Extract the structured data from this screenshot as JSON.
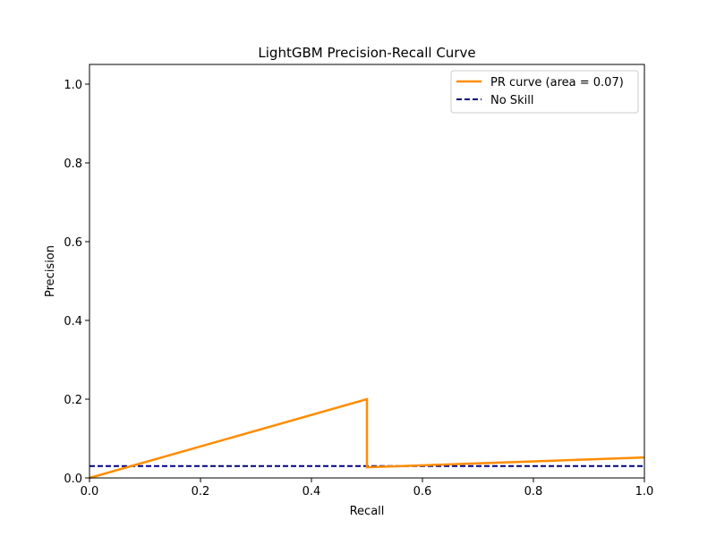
{
  "chart_data": {
    "type": "line",
    "title": "LightGBM Precision-Recall Curve",
    "xlabel": "Recall",
    "ylabel": "Precision",
    "xlim": [
      0.0,
      1.0
    ],
    "ylim": [
      0.0,
      1.05
    ],
    "xticks": [
      "0.0",
      "0.2",
      "0.4",
      "0.6",
      "0.8",
      "1.0"
    ],
    "yticks": [
      "0.0",
      "0.2",
      "0.4",
      "0.6",
      "0.8",
      "1.0"
    ],
    "grid": false,
    "legend_position": "top-right",
    "series": [
      {
        "name": "PR curve (area = 0.07)",
        "color": "#ff8c00",
        "style": "solid",
        "x": [
          0.0,
          0.5,
          0.5,
          1.0
        ],
        "y": [
          0.0,
          0.2,
          0.027,
          0.052
        ]
      },
      {
        "name": "No Skill",
        "color": "#000080",
        "style": "dashed",
        "x": [
          0.0,
          1.0
        ],
        "y": [
          0.03,
          0.03
        ]
      }
    ]
  }
}
